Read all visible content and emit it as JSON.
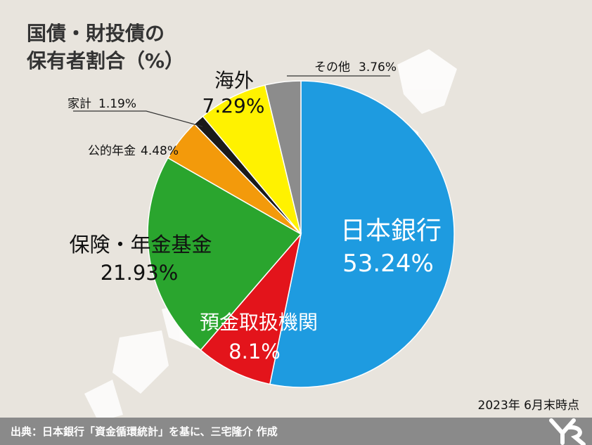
{
  "chart_data": {
    "type": "pie",
    "title_lines": [
      "国債・財投債の",
      "保有者割合（%）"
    ],
    "slices": [
      {
        "label": "日本銀行",
        "value_label": "53.24%",
        "value": 53.24,
        "color": "#1e9be0",
        "text_color": "#ffffff"
      },
      {
        "label": "預金取扱機関",
        "value_label": "8.1%",
        "value": 8.1,
        "color": "#e3141b",
        "text_color": "#ffffff"
      },
      {
        "label": "保険・年金基金",
        "value_label": "21.93%",
        "value": 21.93,
        "color": "#2aa52e",
        "text_color": "#111111"
      },
      {
        "label": "公的年金",
        "value_label": "4.48%",
        "value": 4.48,
        "color": "#f39a0b",
        "text_color": "#111111"
      },
      {
        "label": "家計",
        "value_label": "1.19%",
        "value": 1.19,
        "color": "#1a1a1a",
        "text_color": "#111111"
      },
      {
        "label": "海外",
        "value_label": "7.29%",
        "value": 7.29,
        "color": "#fff200",
        "text_color": "#111111"
      },
      {
        "label": "その他",
        "value_label": "3.76%",
        "value": 3.76,
        "color": "#8c8c8c",
        "text_color": "#111111"
      }
    ]
  },
  "date_note": "2023年 6月末時点",
  "footer": "出典：日本銀行「資金循環統計」を基に、三宅隆介 作成",
  "colors": {
    "background": "#e8e4dd",
    "map": "#ffffff",
    "footer_bar": "#8a8a8a"
  }
}
